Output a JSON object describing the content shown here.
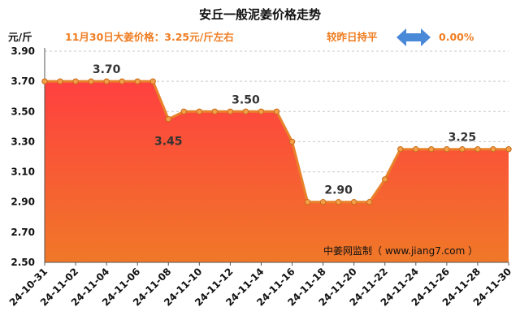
{
  "header": {
    "title": "安丘一般泥姜价格走势",
    "subtitle": "11月30日大姜价格：3.25元/斤左右",
    "compare_label": "较昨日持平",
    "compare_icon": "double-arrow-icon",
    "change_pct": "0.00%"
  },
  "source_text": "中姜网监制（ www.jiang7.com ）",
  "colors": {
    "line": "#e8822a",
    "area_top": "#ff4040",
    "area_bottom": "#f07828",
    "accent_text": "#ef7d22",
    "arrow": "#4a88d8"
  },
  "chart_data": {
    "type": "area",
    "ylabel": "元/斤",
    "ylim": [
      2.5,
      3.9
    ],
    "yticks": [
      "2.50",
      "2.70",
      "2.90",
      "3.10",
      "3.30",
      "3.50",
      "3.70",
      "3.90"
    ],
    "x": [
      "24-10-31",
      "24-11-01",
      "24-11-02",
      "24-11-03",
      "24-11-04",
      "24-11-05",
      "24-11-06",
      "24-11-07",
      "24-11-08",
      "24-11-09",
      "24-11-10",
      "24-11-11",
      "24-11-12",
      "24-11-13",
      "24-11-14",
      "24-11-15",
      "24-11-16",
      "24-11-17",
      "24-11-18",
      "24-11-19",
      "24-11-20",
      "24-11-21",
      "24-11-22",
      "24-11-23",
      "24-11-24",
      "24-11-25",
      "24-11-26",
      "24-11-27",
      "24-11-28",
      "24-11-29",
      "24-11-30"
    ],
    "xtick_labels": [
      "24-10-31",
      "24-11-02",
      "24-11-04",
      "24-11-06",
      "24-11-08",
      "24-11-10",
      "24-11-12",
      "24-11-14",
      "24-11-16",
      "24-11-18",
      "24-11-20",
      "24-11-22",
      "24-11-24",
      "24-11-26",
      "24-11-28",
      "24-11-30"
    ],
    "values": [
      3.7,
      3.7,
      3.7,
      3.7,
      3.7,
      3.7,
      3.7,
      3.7,
      3.45,
      3.5,
      3.5,
      3.5,
      3.5,
      3.5,
      3.5,
      3.5,
      3.3,
      2.9,
      2.9,
      2.9,
      2.9,
      2.9,
      3.05,
      3.25,
      3.25,
      3.25,
      3.25,
      3.25,
      3.25,
      3.25,
      3.25
    ],
    "annotations": [
      {
        "label": "3.70",
        "index": 4,
        "position": "above"
      },
      {
        "label": "3.45",
        "index": 8,
        "position": "below"
      },
      {
        "label": "3.50",
        "index": 13,
        "position": "above"
      },
      {
        "label": "2.90",
        "index": 19,
        "position": "above"
      },
      {
        "label": "3.25",
        "index": 27,
        "position": "above"
      }
    ],
    "grid": true,
    "grid_axis": "y"
  }
}
